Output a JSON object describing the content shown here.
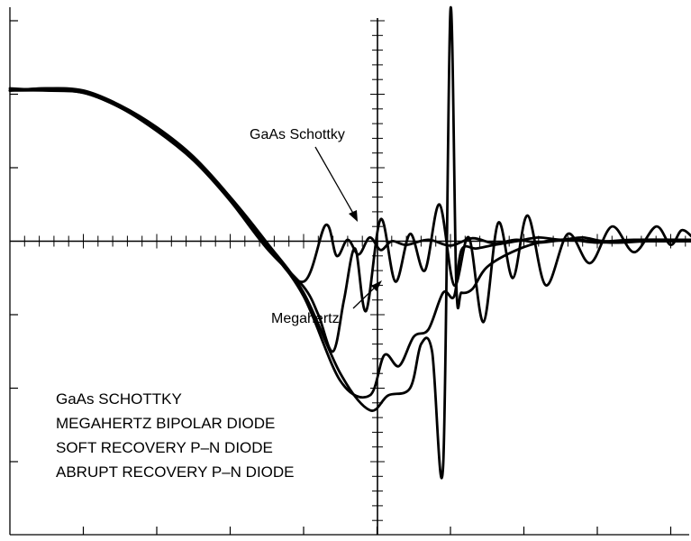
{
  "chart_data": {
    "type": "line",
    "title": "",
    "xlabel": "",
    "ylabel": "",
    "grid": false,
    "axes": {
      "x_major_divisions": 9,
      "y_major_divisions": 7,
      "minor_per_major": 5
    },
    "xlim": [
      0,
      9.3
    ],
    "ylim": [
      -4,
      3.2
    ],
    "legend": {
      "position": "bottom-left",
      "entries": [
        "GaAs SCHOTTKY",
        "MEGAHERTZ BIPOLAR DIODE",
        "SOFT RECOVERY P–N DIODE",
        "ABRUPT RECOVERY P–N DIODE"
      ]
    },
    "annotations": [
      {
        "text": "GaAs Schottky",
        "points_to_series": "GaAs SCHOTTKY"
      },
      {
        "text": "Megahertz",
        "points_to_series": "MEGAHERTZ BIPOLAR DIODE"
      }
    ],
    "series": [
      {
        "name": "GaAs SCHOTTKY",
        "x": [
          0,
          0.5,
          1,
          1.5,
          2,
          2.5,
          3,
          3.5,
          4,
          4.3,
          4.45,
          4.6,
          4.75,
          4.9,
          5.05,
          5.2,
          5.4,
          5.7,
          6.0,
          6.3,
          6.6,
          6.9,
          7.2,
          7.6,
          8.0,
          8.4,
          8.8,
          9.3
        ],
        "y": [
          2.05,
          2.08,
          2.05,
          1.85,
          1.55,
          1.15,
          0.6,
          -0.05,
          -0.55,
          0.22,
          -0.2,
          0.02,
          -0.18,
          0.05,
          -0.12,
          0.0,
          -0.05,
          0.02,
          -0.06,
          0.04,
          -0.03,
          0.02,
          -0.02,
          0.02,
          -0.02,
          0.01,
          0.0,
          0.0
        ]
      },
      {
        "name": "MEGAHERTZ BIPOLAR DIODE",
        "x": [
          0,
          0.5,
          1,
          1.5,
          2,
          2.5,
          3,
          3.5,
          4.0,
          4.2,
          4.4,
          4.55,
          4.7,
          4.85,
          5.05,
          5.25,
          5.45,
          5.65,
          5.85,
          6.05,
          6.25,
          6.45,
          6.65,
          6.85,
          7.05,
          7.3,
          7.6,
          7.9,
          8.2,
          8.5,
          8.8,
          9.0,
          9.15,
          9.3
        ],
        "y": [
          2.05,
          2.05,
          2.02,
          1.82,
          1.52,
          1.1,
          0.55,
          -0.1,
          -0.62,
          -1.0,
          -1.5,
          -0.8,
          -0.1,
          -0.95,
          0.3,
          -0.55,
          0.1,
          -0.4,
          0.5,
          -0.6,
          0.05,
          -1.1,
          0.25,
          -0.5,
          0.35,
          -0.6,
          0.1,
          -0.3,
          0.2,
          -0.15,
          0.2,
          -0.05,
          0.15,
          0.05
        ]
      },
      {
        "name": "SOFT RECOVERY P–N DIODE",
        "x": [
          0,
          0.5,
          1,
          1.5,
          2,
          2.5,
          3,
          3.5,
          4,
          4.5,
          4.9,
          5.1,
          5.3,
          5.5,
          5.7,
          5.9,
          6.05,
          6.15,
          6.35,
          6.6,
          6.9,
          7.2,
          7.5,
          7.8,
          8.1,
          8.5,
          9.3
        ],
        "y": [
          2.08,
          2.05,
          2.02,
          1.82,
          1.5,
          1.1,
          0.58,
          -0.05,
          -0.75,
          -1.9,
          -2.1,
          -1.55,
          -1.7,
          -1.3,
          -1.2,
          -0.7,
          -0.75,
          -0.12,
          -0.1,
          -0.05,
          0.0,
          0.05,
          0.02,
          0.05,
          0.0,
          0.02,
          0.02
        ]
      },
      {
        "name": "ABRUPT RECOVERY P–N DIODE",
        "x": [
          0,
          0.5,
          1,
          1.5,
          2,
          2.5,
          3,
          3.5,
          4,
          4.5,
          4.9,
          5.15,
          5.45,
          5.6,
          5.75,
          5.9,
          6.0,
          6.08,
          6.15,
          6.3,
          6.5,
          6.9,
          7.3,
          7.7,
          8.2,
          8.7,
          9.3
        ],
        "y": [
          2.05,
          2.08,
          2.04,
          1.83,
          1.53,
          1.12,
          0.6,
          -0.02,
          -0.7,
          -1.8,
          -2.3,
          -2.1,
          -2.0,
          -1.4,
          -1.5,
          -3.05,
          3.15,
          -0.6,
          -0.7,
          -0.65,
          -0.35,
          -0.12,
          0.0,
          0.02,
          -0.02,
          0.0,
          0.0
        ]
      }
    ]
  }
}
